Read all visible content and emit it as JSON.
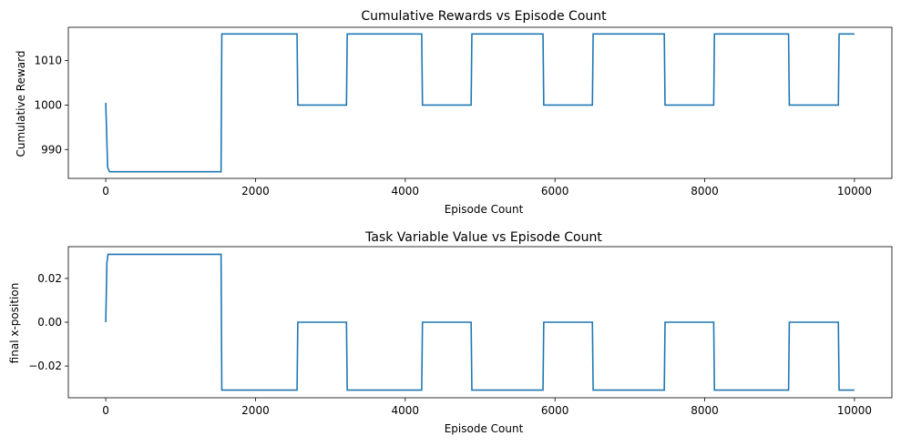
{
  "chart_data": [
    {
      "type": "line",
      "title": "Cumulative Rewards vs Episode Count",
      "xlabel": "Episode Count",
      "ylabel": "Cumulative Reward",
      "xlim": [
        -500,
        10500
      ],
      "ylim": [
        983.5,
        1017.5
      ],
      "xticks": [
        0,
        2000,
        4000,
        6000,
        8000,
        10000
      ],
      "yticks": [
        990,
        1000,
        1010
      ],
      "grid": false,
      "color": "#1f77b4",
      "x": [
        0,
        25,
        50,
        1540,
        1550,
        2555,
        2565,
        3215,
        3225,
        4220,
        4230,
        4880,
        4890,
        5840,
        5850,
        6500,
        6510,
        7460,
        7470,
        8120,
        8130,
        9120,
        9130,
        9785,
        9795,
        10000
      ],
      "y": [
        1000.5,
        986,
        985,
        985,
        1016,
        1016,
        1000,
        1000,
        1016,
        1016,
        1000,
        1000,
        1016,
        1016,
        1000,
        1000,
        1016,
        1016,
        1000,
        1000,
        1016,
        1016,
        1000,
        1000,
        1016,
        1016
      ]
    },
    {
      "type": "line",
      "title": "Task Variable Value vs Episode Count",
      "xlabel": "Episode Count",
      "ylabel": "final x-position",
      "xlim": [
        -500,
        10500
      ],
      "ylim": [
        -0.0345,
        0.0345
      ],
      "xticks": [
        0,
        2000,
        4000,
        6000,
        8000,
        10000
      ],
      "yticks": [
        -0.02,
        0.0,
        0.02
      ],
      "ytick_labels": [
        "−0.02",
        "0.00",
        "0.02"
      ],
      "grid": false,
      "color": "#1f77b4",
      "x": [
        0,
        15,
        30,
        1540,
        1550,
        2555,
        2565,
        3215,
        3225,
        4220,
        4230,
        4880,
        4890,
        5840,
        5850,
        6500,
        6510,
        7460,
        7470,
        8120,
        8130,
        9120,
        9130,
        9785,
        9795,
        10000
      ],
      "y": [
        0.0,
        0.027,
        0.031,
        0.031,
        -0.031,
        -0.031,
        0.0,
        0.0,
        -0.031,
        -0.031,
        0.0,
        0.0,
        -0.031,
        -0.031,
        0.0,
        0.0,
        -0.031,
        -0.031,
        0.0,
        0.0,
        -0.031,
        -0.031,
        0.0,
        0.0,
        -0.031,
        -0.031
      ]
    }
  ]
}
